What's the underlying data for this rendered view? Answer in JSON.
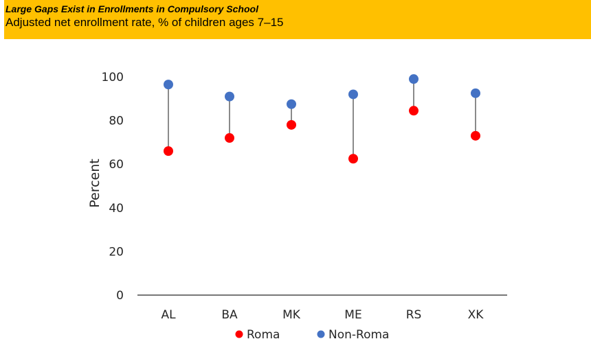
{
  "title": "Large Gaps Exist in Enrollments in Compulsory School",
  "subtitle": "Adjusted net enrollment rate, % of children ages 7–15",
  "colors": {
    "header_bg": "#FFC000",
    "roma": "#FF0000",
    "non_roma": "#4472C4",
    "connector": "#595959",
    "axis": "#262626"
  },
  "chart_data": {
    "type": "scatter",
    "title": "",
    "xlabel": "",
    "ylabel": "Percent",
    "ylim": [
      0,
      100
    ],
    "yticks": [
      0,
      20,
      40,
      60,
      80,
      100
    ],
    "categories": [
      "AL",
      "BA",
      "MK",
      "ME",
      "RS",
      "XK"
    ],
    "series": [
      {
        "name": "Roma",
        "values": [
          66,
          72,
          78,
          62.5,
          84.5,
          73
        ]
      },
      {
        "name": "Non-Roma",
        "values": [
          96.5,
          91,
          87.5,
          92,
          99,
          92.5
        ]
      }
    ],
    "legend_position": "bottom",
    "grid": false
  }
}
